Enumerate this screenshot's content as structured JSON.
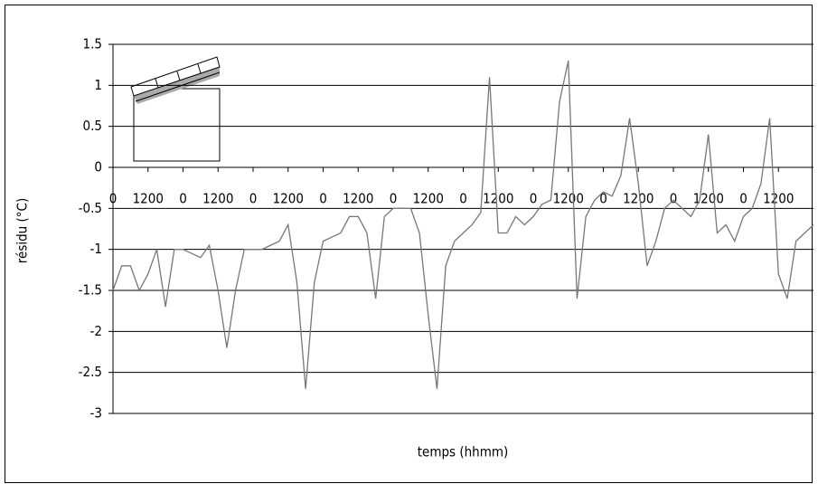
{
  "chart_data": {
    "type": "line",
    "y_label": "résidu (°C)",
    "x_label": "temps (hhmm)",
    "x": [
      0,
      3,
      6,
      9,
      12,
      15,
      18,
      21,
      24,
      27,
      30,
      33,
      36,
      39,
      42,
      45,
      48,
      51,
      54,
      57,
      60,
      63,
      66,
      69,
      72,
      75,
      78,
      81,
      84,
      87,
      90,
      93,
      96,
      99,
      102,
      105,
      108,
      111,
      114,
      117,
      120,
      123,
      126,
      129,
      132,
      135,
      138,
      141,
      144,
      147,
      150,
      153,
      156,
      159,
      162,
      165,
      168,
      171,
      174,
      177,
      180,
      183,
      186,
      189,
      192,
      195,
      198,
      201,
      204,
      207,
      210,
      213,
      216,
      219,
      222,
      225,
      228,
      231,
      234,
      237,
      240
    ],
    "series": [
      {
        "name": "résidu",
        "color": "#777777",
        "values": [
          -1.5,
          -1.2,
          -1.2,
          -1.5,
          -1.3,
          -1.0,
          -1.7,
          -1.0,
          -1.0,
          -1.05,
          -1.1,
          -0.95,
          -1.5,
          -2.2,
          -1.5,
          -1.0,
          -1.0,
          -1.0,
          -0.95,
          -0.9,
          -0.7,
          -1.4,
          -2.7,
          -1.4,
          -0.9,
          -0.85,
          -0.8,
          -0.6,
          -0.6,
          -0.8,
          -1.6,
          -0.6,
          -0.5,
          -0.5,
          -0.5,
          -0.8,
          -1.8,
          -2.7,
          -1.2,
          -0.9,
          -0.8,
          -0.7,
          -0.55,
          1.1,
          -0.8,
          -0.8,
          -0.6,
          -0.7,
          -0.6,
          -0.45,
          -0.4,
          0.8,
          1.3,
          -1.6,
          -0.6,
          -0.4,
          -0.3,
          -0.35,
          -0.1,
          0.6,
          -0.2,
          -1.2,
          -0.9,
          -0.5,
          -0.4,
          -0.5,
          -0.6,
          -0.4,
          0.4,
          -0.8,
          -0.7,
          -0.9,
          -0.6,
          -0.5,
          -0.2,
          0.6,
          -1.3,
          -1.6,
          -0.9,
          -0.8,
          -0.7
        ]
      }
    ],
    "xlim": [
      0,
      240
    ],
    "xticks": [
      0,
      {
        "value": 12,
        "label": "1200"
      },
      {
        "value": 24,
        "label": "0"
      },
      {
        "value": 36,
        "label": "1200"
      },
      {
        "value": 48,
        "label": "0"
      },
      {
        "value": 60,
        "label": "1200"
      },
      {
        "value": 72,
        "label": "0"
      },
      {
        "value": 84,
        "label": "1200"
      },
      {
        "value": 96,
        "label": "0"
      },
      {
        "value": 108,
        "label": "1200"
      },
      {
        "value": 120,
        "label": "0"
      },
      {
        "value": 132,
        "label": "1200"
      },
      {
        "value": 144,
        "label": "0"
      },
      {
        "value": 156,
        "label": "1200"
      },
      {
        "value": 168,
        "label": "0"
      },
      {
        "value": 180,
        "label": "1200"
      },
      {
        "value": 192,
        "label": "0"
      },
      {
        "value": 204,
        "label": "1200"
      },
      {
        "value": 216,
        "label": "0"
      },
      {
        "value": 228,
        "label": "1200"
      }
    ],
    "ylim": [
      -3,
      1.5
    ],
    "yticks": [
      -3,
      -2.5,
      -2,
      -1.5,
      -1,
      -0.5,
      0,
      0.5,
      1,
      1.5
    ],
    "grid": true
  }
}
